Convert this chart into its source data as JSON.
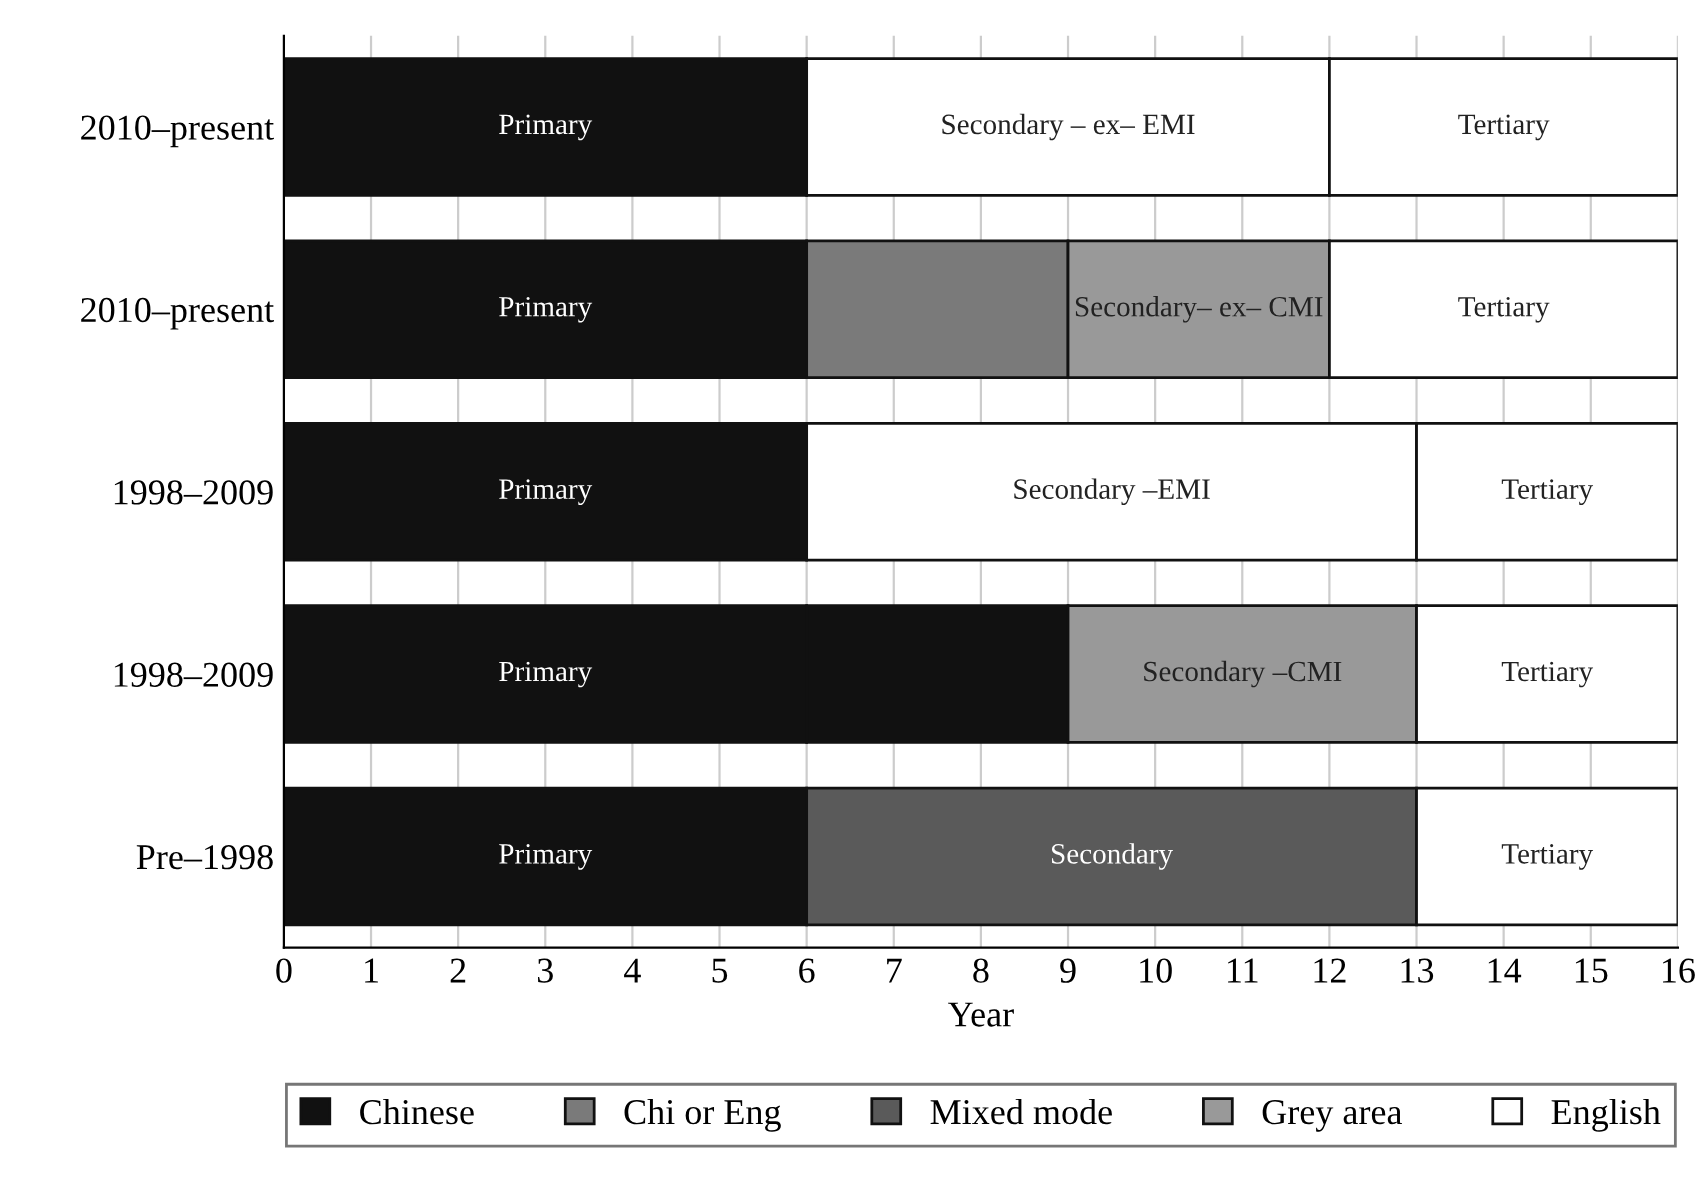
{
  "chart_data": {
    "type": "bar",
    "orientation": "horizontal",
    "stacked": true,
    "xlabel": "Year",
    "categories": [
      "2010–present",
      "2010–present",
      "1998–2009",
      "1998–2009",
      "Pre–1998"
    ],
    "series": [
      {
        "name": "Chinese",
        "color": "#111111",
        "values": [
          6,
          6,
          6,
          6,
          6
        ],
        "value_labels": [
          "Primary",
          "Primary",
          "Primary",
          "Primary",
          "Primary"
        ]
      },
      {
        "name": "Chi or Eng",
        "color": "#7a7a7a",
        "values": [
          null,
          3,
          null,
          null,
          null
        ]
      },
      {
        "color": "#111111",
        "values": [
          null,
          null,
          null,
          3,
          null
        ]
      },
      {
        "name": "Mixed mode",
        "color": "#5a5a5a",
        "values": [
          null,
          null,
          null,
          null,
          7
        ],
        "value_labels": [
          null,
          null,
          null,
          null,
          "Secondary"
        ]
      },
      {
        "name": "Grey area",
        "color": "#999999",
        "values": [
          null,
          3,
          null,
          4,
          null
        ],
        "value_labels": [
          null,
          "Secondary– ex– CMI",
          null,
          "Secondary –CMI",
          null
        ]
      },
      {
        "name": "English",
        "color": "#ffffff",
        "values": [
          6,
          null,
          7,
          null,
          null
        ],
        "value_labels": [
          "Secondary – ex– EMI",
          null,
          "Secondary –EMI",
          null,
          null
        ]
      },
      {
        "color": "#ffffff",
        "values": [
          4,
          4,
          3,
          3,
          3
        ],
        "value_labels": [
          "Tertiary",
          "Tertiary",
          "Tertiary",
          "Tertiary",
          "Tertiary"
        ]
      }
    ],
    "xlim": [
      0,
      16
    ],
    "xticks": [
      0,
      1,
      2,
      3,
      4,
      5,
      6,
      7,
      8,
      9,
      10,
      11,
      12,
      13,
      14,
      15,
      16
    ],
    "grid": "x",
    "legend": "bottom"
  }
}
